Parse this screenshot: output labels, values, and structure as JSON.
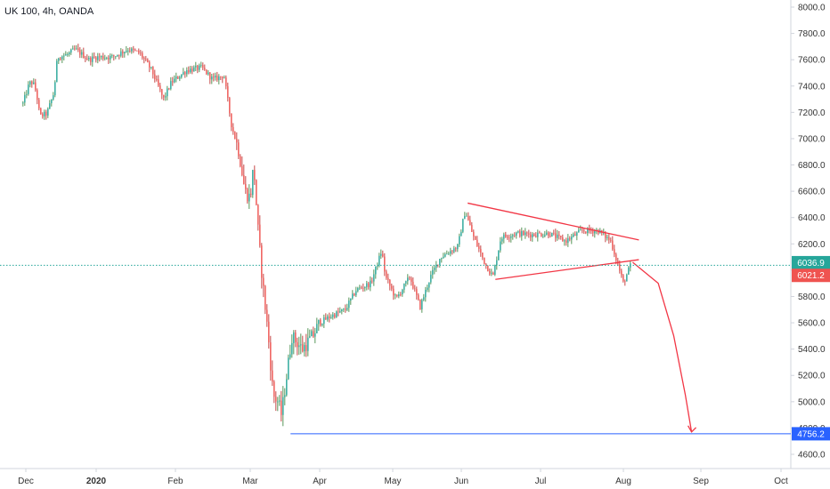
{
  "chart_title": "UK 100, 4h, OANDA",
  "colors": {
    "up": "#26a69a",
    "down": "#ef5350",
    "wick_up": "#2e7d32",
    "wick_down": "#b71c1c",
    "annotation": "#f23645",
    "support_line": "#2962ff",
    "support_badge": "#2962ff",
    "price_line": "#26a69a",
    "price_badge_prev": "#26a69a",
    "price_badge_last": "#ef5350",
    "axis_text": "#333333",
    "axis_line": "#d1d4dc"
  },
  "chart_data": {
    "type": "candlestick",
    "title": "UK 100, 4h, OANDA",
    "xlabel": "",
    "ylabel": "",
    "y_axis_position": "right",
    "ylim": [
      4500,
      8050
    ],
    "grid": false,
    "x_tick_labels": [
      "Dec",
      "2020",
      "Feb",
      "Mar",
      "Apr",
      "May",
      "Jun",
      "Jul",
      "Aug",
      "Sep",
      "Oct"
    ],
    "x_tick_months": [
      0,
      1,
      2,
      3,
      4,
      5,
      6,
      7,
      8,
      9,
      10
    ],
    "y_tick_labels": [
      "4600.0",
      "4800.0",
      "5000.0",
      "5200.0",
      "5400.0",
      "5600.0",
      "5800.0",
      "6000.0",
      "6200.0",
      "6400.0",
      "6600.0",
      "6800.0",
      "7000.0",
      "7200.0",
      "7400.0",
      "7600.0",
      "7800.0",
      "8000.0"
    ],
    "y_ticks": [
      4600,
      4800,
      5000,
      5200,
      5400,
      5600,
      5800,
      6000,
      6200,
      6400,
      6600,
      6800,
      7000,
      7200,
      7400,
      7600,
      7800,
      8000
    ],
    "price_path": [
      [
        -0.05,
        7250
      ],
      [
        0.05,
        7420
      ],
      [
        0.1,
        7430
      ],
      [
        0.15,
        7350
      ],
      [
        0.2,
        7170
      ],
      [
        0.3,
        7190
      ],
      [
        0.4,
        7350
      ],
      [
        0.45,
        7620
      ],
      [
        0.6,
        7640
      ],
      [
        0.7,
        7680
      ],
      [
        0.9,
        7600
      ],
      [
        1.0,
        7620
      ],
      [
        1.2,
        7620
      ],
      [
        1.4,
        7680
      ],
      [
        1.55,
        7650
      ],
      [
        1.7,
        7520
      ],
      [
        1.85,
        7300
      ],
      [
        1.95,
        7430
      ],
      [
        2.15,
        7520
      ],
      [
        2.35,
        7540
      ],
      [
        2.5,
        7450
      ],
      [
        2.65,
        7480
      ],
      [
        2.75,
        7100
      ],
      [
        2.85,
        6900
      ],
      [
        2.93,
        6600
      ],
      [
        3.0,
        6550
      ],
      [
        3.05,
        6800
      ],
      [
        3.12,
        6250
      ],
      [
        3.18,
        5900
      ],
      [
        3.26,
        5500
      ],
      [
        3.33,
        5050
      ],
      [
        3.4,
        5000
      ],
      [
        3.45,
        4900
      ],
      [
        3.5,
        5100
      ],
      [
        3.6,
        5500
      ],
      [
        3.75,
        5400
      ],
      [
        3.9,
        5500
      ],
      [
        4.0,
        5600
      ],
      [
        4.15,
        5650
      ],
      [
        4.35,
        5700
      ],
      [
        4.5,
        5850
      ],
      [
        4.7,
        5900
      ],
      [
        4.85,
        6150
      ],
      [
        4.9,
        5950
      ],
      [
        5.05,
        5780
      ],
      [
        5.25,
        5950
      ],
      [
        5.4,
        5720
      ],
      [
        5.55,
        5950
      ],
      [
        5.7,
        6100
      ],
      [
        5.95,
        6180
      ],
      [
        6.05,
        6450
      ],
      [
        6.15,
        6260
      ],
      [
        6.3,
        6050
      ],
      [
        6.4,
        5950
      ],
      [
        6.5,
        6250
      ],
      [
        6.7,
        6280
      ],
      [
        6.9,
        6270
      ],
      [
        7.1,
        6280
      ],
      [
        7.3,
        6220
      ],
      [
        7.5,
        6300
      ],
      [
        7.7,
        6300
      ],
      [
        7.85,
        6220
      ],
      [
        8.0,
        5900
      ],
      [
        8.1,
        6050
      ]
    ],
    "annotations": {
      "triangle_upper": [
        [
          6.08,
          6510
        ],
        [
          8.2,
          6230
        ]
      ],
      "triangle_lower": [
        [
          6.43,
          5930
        ],
        [
          8.2,
          6080
        ]
      ],
      "projection_arrow": [
        [
          8.12,
          6060
        ],
        [
          8.45,
          5900
        ],
        [
          8.65,
          5500
        ],
        [
          8.8,
          5050
        ],
        [
          8.88,
          4770
        ]
      ],
      "support_start": [
        3.58,
        4756.2
      ]
    },
    "price_labels": [
      {
        "value": 6036.9,
        "label": "6036.9",
        "color": "price_badge_prev"
      },
      {
        "value": 6021.2,
        "label": "6021.2",
        "color": "price_badge_last"
      },
      {
        "value": 4756.2,
        "label": "4756.2",
        "color": "support_badge"
      }
    ]
  }
}
